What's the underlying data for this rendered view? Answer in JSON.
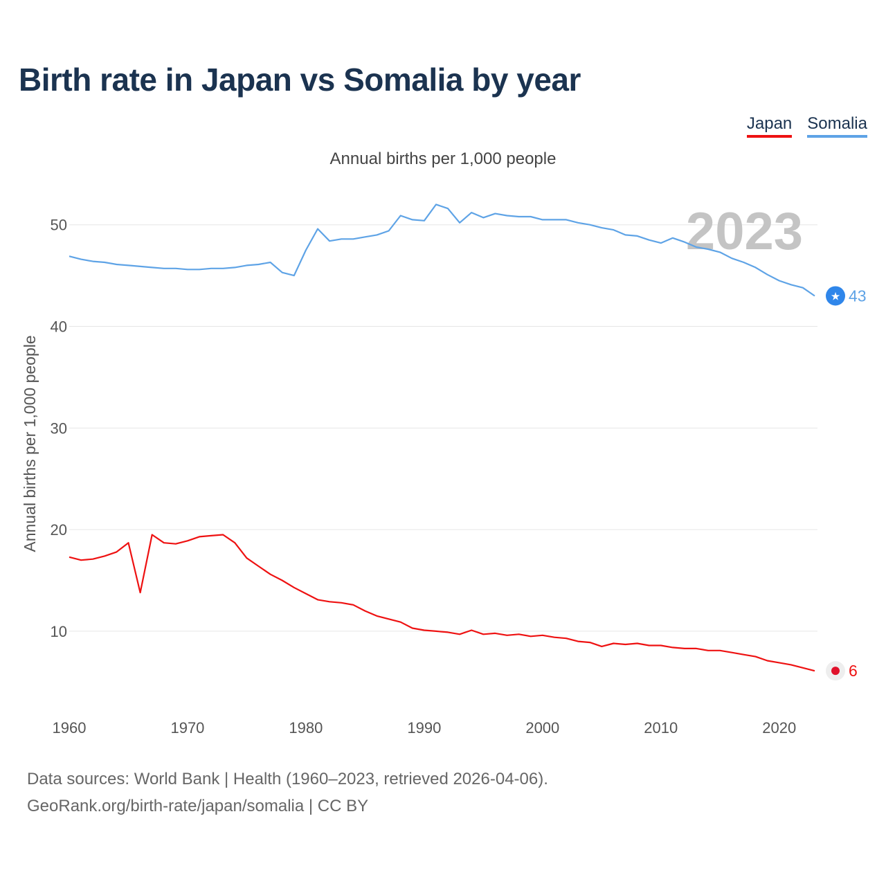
{
  "title": "Birth rate in Japan vs Somalia by year",
  "legend": [
    {
      "label": "Japan",
      "color": "#ee1111"
    },
    {
      "label": "Somalia",
      "color": "#5ea3e6"
    }
  ],
  "subtitle": "Annual births per 1,000 people",
  "source_line1": "Data sources: World Bank | Health (1960–2023, retrieved 2026-04-06).",
  "source_line2": "GeoRank.org/birth-rate/japan/somalia | CC BY",
  "chart_data": {
    "type": "line",
    "title": "Birth rate in Japan vs Somalia by year",
    "ylabel": "Annual births per 1,000 people",
    "xlabel": "",
    "year_label": "2023",
    "xlim": [
      1960,
      2023
    ],
    "ylim": [
      4,
      54
    ],
    "x_ticks": [
      1960,
      1970,
      1980,
      1990,
      2000,
      2010,
      2020
    ],
    "y_ticks": [
      10,
      20,
      30,
      40,
      50
    ],
    "grid": true,
    "x": [
      1960,
      1961,
      1962,
      1963,
      1964,
      1965,
      1966,
      1967,
      1968,
      1969,
      1970,
      1971,
      1972,
      1973,
      1974,
      1975,
      1976,
      1977,
      1978,
      1979,
      1980,
      1981,
      1982,
      1983,
      1984,
      1985,
      1986,
      1987,
      1988,
      1989,
      1990,
      1991,
      1992,
      1993,
      1994,
      1995,
      1996,
      1997,
      1998,
      1999,
      2000,
      2001,
      2002,
      2003,
      2004,
      2005,
      2006,
      2007,
      2008,
      2009,
      2010,
      2011,
      2012,
      2013,
      2014,
      2015,
      2016,
      2017,
      2018,
      2019,
      2020,
      2021,
      2022,
      2023
    ],
    "series": [
      {
        "name": "Japan",
        "color": "#ee1111",
        "end_label": "6",
        "values": [
          17.3,
          17.0,
          17.1,
          17.4,
          17.8,
          18.7,
          13.8,
          19.5,
          18.7,
          18.6,
          18.9,
          19.3,
          19.4,
          19.5,
          18.7,
          17.2,
          16.4,
          15.6,
          15.0,
          14.3,
          13.7,
          13.1,
          12.9,
          12.8,
          12.6,
          12.0,
          11.5,
          11.2,
          10.9,
          10.3,
          10.1,
          10.0,
          9.9,
          9.7,
          10.1,
          9.7,
          9.8,
          9.6,
          9.7,
          9.5,
          9.6,
          9.4,
          9.3,
          9.0,
          8.9,
          8.5,
          8.8,
          8.7,
          8.8,
          8.6,
          8.6,
          8.4,
          8.3,
          8.3,
          8.1,
          8.1,
          7.9,
          7.7,
          7.5,
          7.1,
          6.9,
          6.7,
          6.4,
          6.1
        ]
      },
      {
        "name": "Somalia",
        "color": "#5ea3e6",
        "end_label": "43",
        "values": [
          46.9,
          46.6,
          46.4,
          46.3,
          46.1,
          46.0,
          45.9,
          45.8,
          45.7,
          45.7,
          45.6,
          45.6,
          45.7,
          45.7,
          45.8,
          46.0,
          46.1,
          46.3,
          45.3,
          45.0,
          47.5,
          49.6,
          48.4,
          48.6,
          48.6,
          48.8,
          49.0,
          49.4,
          50.9,
          50.5,
          50.4,
          52.0,
          51.6,
          50.2,
          51.2,
          50.7,
          51.1,
          50.9,
          50.8,
          50.8,
          50.5,
          50.5,
          50.5,
          50.2,
          50.0,
          49.7,
          49.5,
          49.0,
          48.9,
          48.5,
          48.2,
          48.7,
          48.3,
          47.8,
          47.6,
          47.3,
          46.7,
          46.3,
          45.8,
          45.1,
          44.5,
          44.1,
          43.8,
          43.0
        ]
      }
    ]
  }
}
